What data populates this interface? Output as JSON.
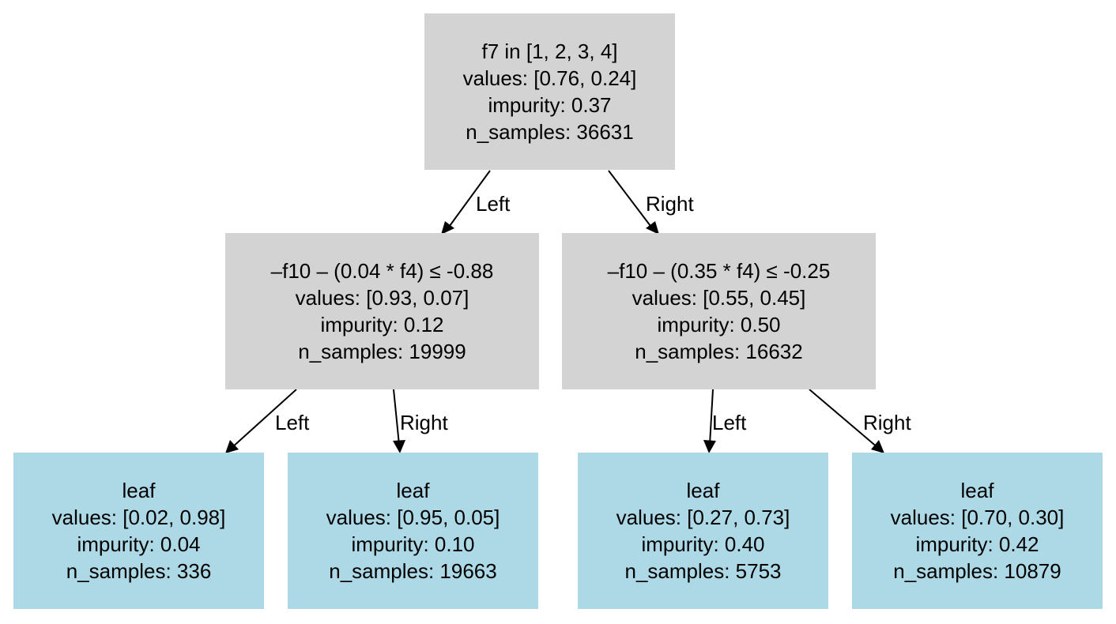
{
  "colors": {
    "split_fill": "#d3d3d3",
    "leaf_fill": "#add8e6",
    "edge": "#000000"
  },
  "nodes": {
    "root": {
      "condition": "f7 in [1, 2, 3, 4]",
      "values": "values: [0.76, 0.24]",
      "impurity": "impurity: 0.37",
      "n_samples": "n_samples: 36631"
    },
    "left_split": {
      "condition": "–f10  – (0.04 * f4) ≤ -0.88",
      "values": "values: [0.93, 0.07]",
      "impurity": "impurity: 0.12",
      "n_samples": "n_samples: 19999"
    },
    "right_split": {
      "condition": "–f10  – (0.35 * f4) ≤ -0.25",
      "values": "values: [0.55, 0.45]",
      "impurity": "impurity: 0.50",
      "n_samples": "n_samples: 16632"
    },
    "leaf_1": {
      "title": "leaf",
      "values": "values: [0.02, 0.98]",
      "impurity": "impurity: 0.04",
      "n_samples": "n_samples: 336"
    },
    "leaf_2": {
      "title": "leaf",
      "values": "values: [0.95, 0.05]",
      "impurity": "impurity: 0.10",
      "n_samples": "n_samples: 19663"
    },
    "leaf_3": {
      "title": "leaf",
      "values": "values: [0.27, 0.73]",
      "impurity": "impurity: 0.40",
      "n_samples": "n_samples: 5753"
    },
    "leaf_4": {
      "title": "leaf",
      "values": "values: [0.70, 0.30]",
      "impurity": "impurity: 0.42",
      "n_samples": "n_samples: 10879"
    }
  },
  "edges": {
    "root_left": "Left",
    "root_right": "Right",
    "left_left": "Left",
    "left_right": "Right",
    "right_left": "Left",
    "right_right": "Right"
  }
}
